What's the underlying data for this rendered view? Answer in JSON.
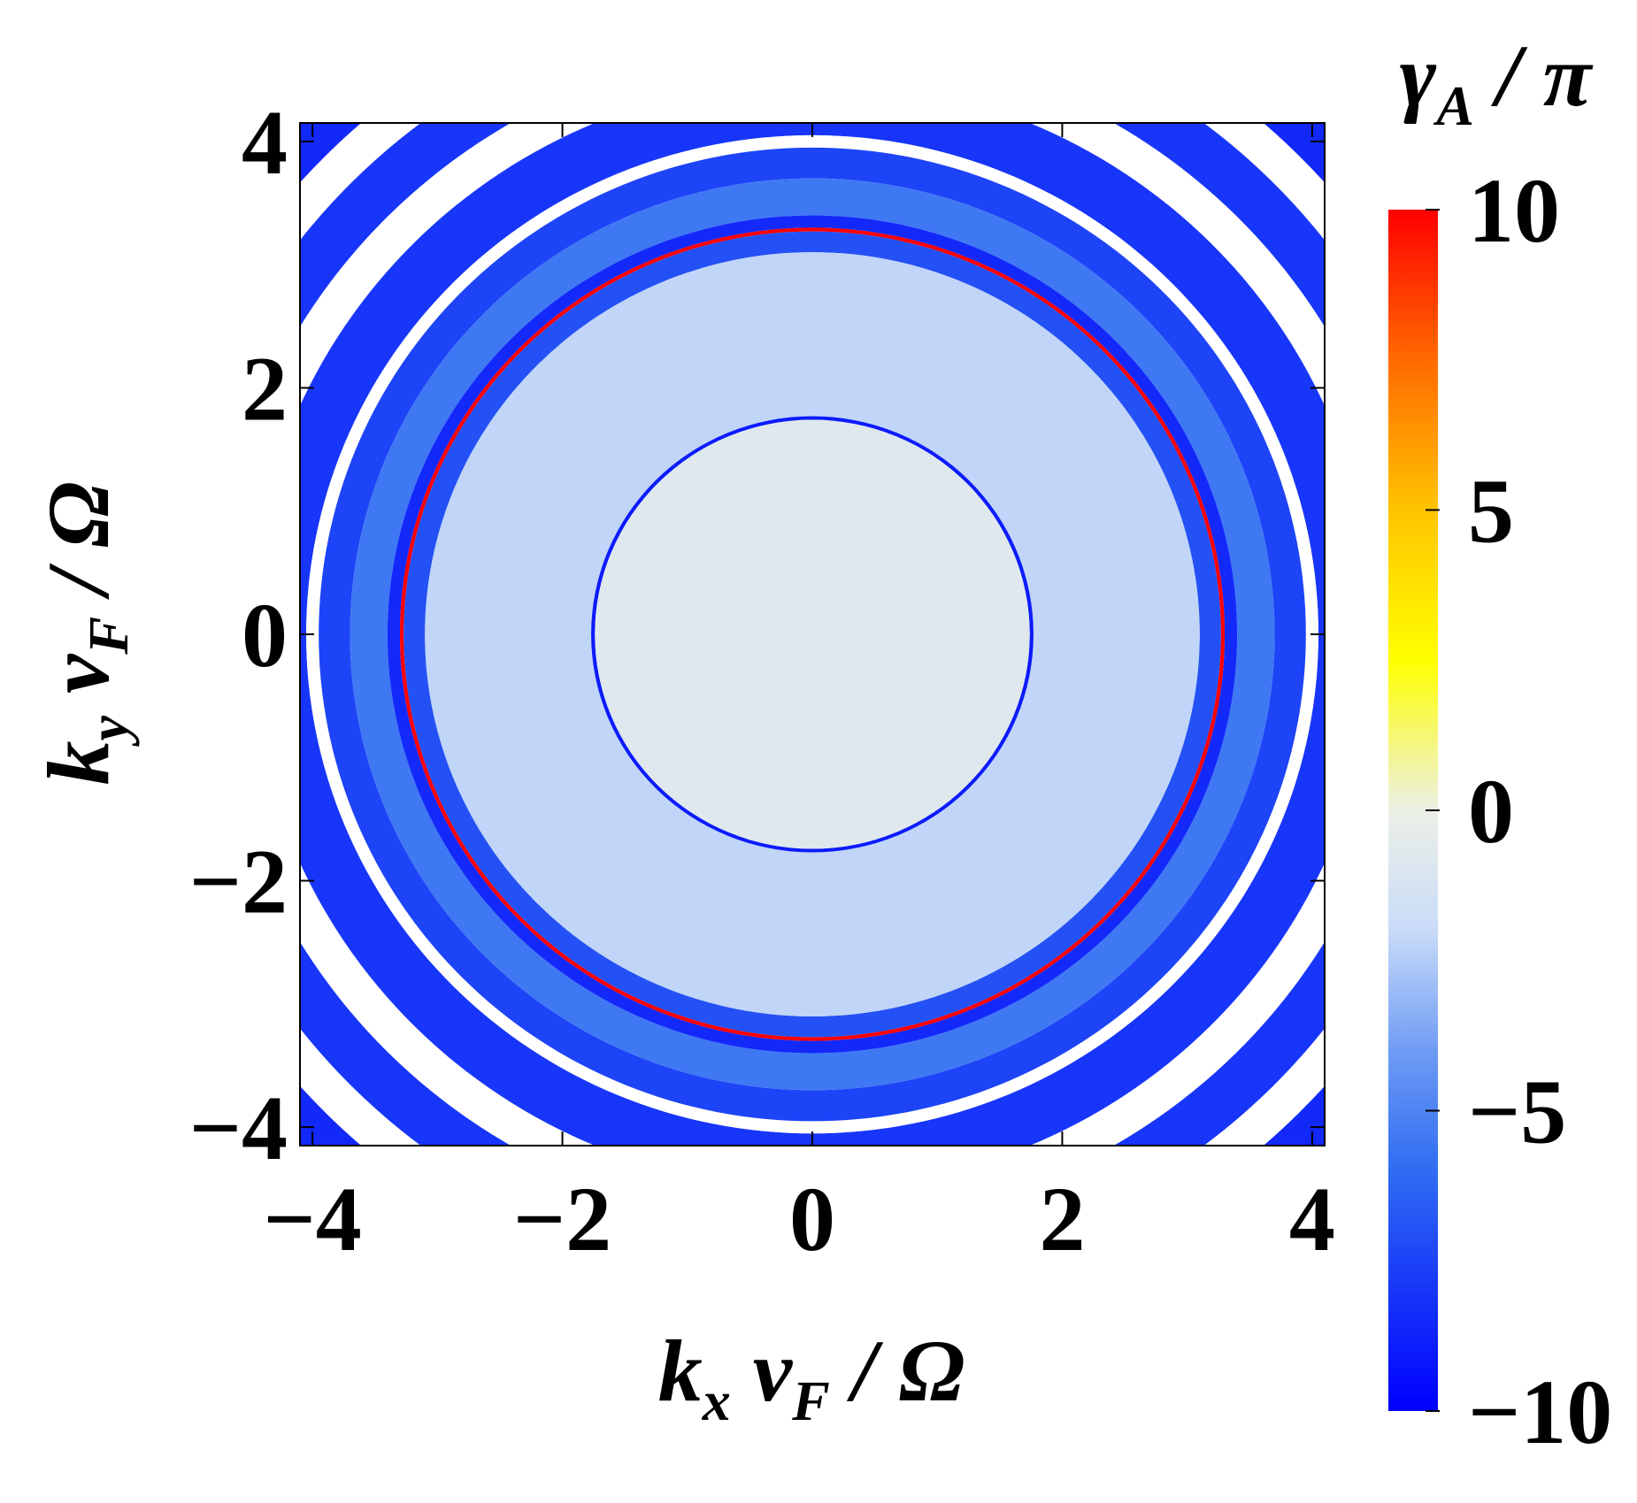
{
  "chart_data": {
    "type": "density",
    "xlabel": [
      "k",
      "x",
      " v",
      "F",
      " / Ω"
    ],
    "ylabel": [
      "k",
      "y",
      " v",
      "F",
      " / Ω"
    ],
    "colorbar_label": [
      "γ",
      "A",
      " / π"
    ],
    "xlim": [
      -4.1,
      4.1
    ],
    "ylim": [
      -4.15,
      4.15
    ],
    "xticks": [
      {
        "value": -4,
        "label": "−4"
      },
      {
        "value": -2,
        "label": "−2"
      },
      0,
      2,
      4
    ],
    "yticks": [
      {
        "value": -4,
        "label": "−4"
      },
      {
        "value": -2,
        "label": "−2"
      },
      0,
      2,
      4
    ],
    "clim": [
      -10,
      10
    ],
    "cticks": [
      {
        "value": -10,
        "label": "−10"
      },
      {
        "value": -5,
        "label": "−5"
      },
      0,
      5,
      10
    ],
    "colormap": [
      [
        -10,
        "#0000ff"
      ],
      [
        -6,
        "#2f6cf2"
      ],
      [
        -4,
        "#6f9cf4"
      ],
      [
        -2,
        "#c9dbf8"
      ],
      [
        0,
        "#ecf0e6"
      ],
      [
        2.5,
        "#ffff00"
      ],
      [
        5,
        "#ffc400"
      ],
      [
        7.5,
        "#ff6a00"
      ],
      [
        10,
        "#ff0000"
      ]
    ],
    "rings": [
      {
        "r": [
          5.5,
          6.0
        ],
        "value": -8.5
      },
      {
        "r": [
          5.2,
          5.5
        ],
        "value": null
      },
      {
        "r": [
          4.8,
          5.2
        ],
        "value": -8
      },
      {
        "r": [
          4.5,
          4.8
        ],
        "value": null
      },
      {
        "r": [
          4.05,
          4.5
        ],
        "value": -8
      },
      {
        "r": [
          3.95,
          4.05
        ],
        "value": null
      },
      {
        "r": [
          3.7,
          3.95
        ],
        "value": -7.5
      },
      {
        "r": [
          3.4,
          3.7
        ],
        "value": -5.5
      },
      {
        "r": [
          3.3,
          3.4
        ],
        "value": -8.5
      },
      {
        "r": [
          3.27,
          3.3
        ],
        "value": 10
      },
      {
        "r": [
          3.1,
          3.27
        ],
        "value": -7
      },
      {
        "r": [
          1.77,
          3.1
        ],
        "value": -2.2
      },
      {
        "r": [
          1.74,
          1.77
        ],
        "value": -9
      },
      {
        "r": [
          0,
          1.74
        ],
        "value": -0.8
      }
    ]
  }
}
